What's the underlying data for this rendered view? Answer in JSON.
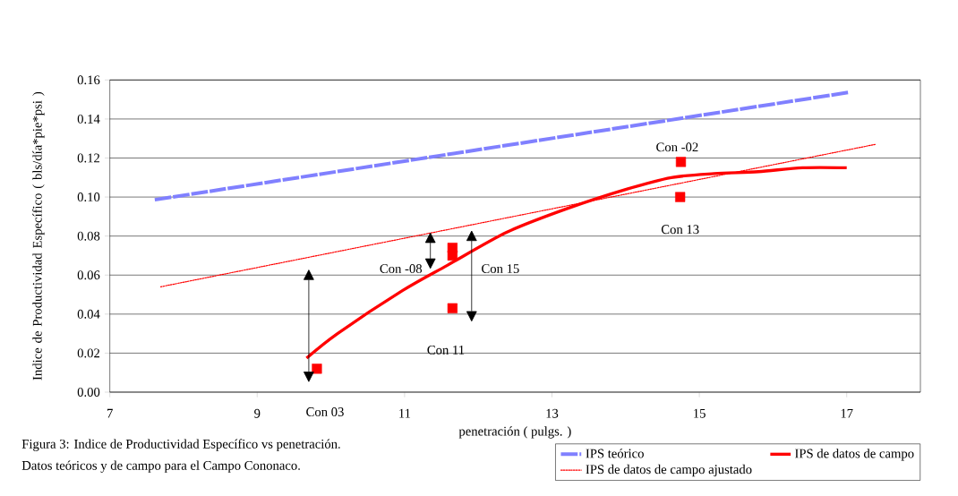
{
  "chart_data": {
    "type": "line",
    "xlabel": "penetración ( pulgs. )",
    "ylabel": "Indice de Productividad Específico ( bls/día*pie*psi )",
    "xlim": [
      7,
      18
    ],
    "xticks": [
      7,
      9,
      11,
      13,
      15,
      17
    ],
    "ylim": [
      0,
      0.16
    ],
    "yticks": [
      {
        "value": 0,
        "label": "0.00"
      },
      {
        "value": 0.02,
        "label": "0.02"
      },
      {
        "value": 0.04,
        "label": "0.04"
      },
      {
        "value": 0.06,
        "label": "0.06"
      },
      {
        "value": 0.08,
        "label": "0.08"
      },
      {
        "value": 0.1,
        "label": "0.10"
      },
      {
        "value": 0.12,
        "label": "0.12"
      },
      {
        "value": 0.14,
        "label": "0.14"
      },
      {
        "value": 0.16,
        "label": "0.16"
      }
    ],
    "grid": "y",
    "legend": "bottom right",
    "series": [
      {
        "name": "IPS teórico",
        "color": "#8080ff",
        "line_style": "dashed",
        "x": [
          7.61,
          17.02
        ],
        "values": [
          0.0986,
          0.1536
        ]
      },
      {
        "name": "IPS de datos de campo",
        "color": "#ff0000",
        "line_style": "solid",
        "x": [
          9.67,
          10.09,
          10.97,
          11.58,
          12.39,
          13.2,
          14.01,
          14.62,
          15.2,
          15.8,
          16.4,
          17.0
        ],
        "values": [
          0.0174,
          0.03,
          0.052,
          0.065,
          0.082,
          0.094,
          0.104,
          0.11,
          0.112,
          0.113,
          0.115,
          0.115
        ]
      },
      {
        "name": "IPS de datos de campo ajustado",
        "color": "#ff0000",
        "line_style": "dotted",
        "x": [
          7.69,
          17.39
        ],
        "values": [
          0.054,
          0.127
        ]
      },
      {
        "type": "scatter",
        "color": "#ff0000",
        "marker": "square",
        "x": [
          9.81,
          11.65,
          11.65,
          11.65,
          14.75,
          14.74
        ],
        "values": [
          0.012,
          0.074,
          0.07,
          0.043,
          0.118,
          0.1
        ]
      }
    ],
    "annotations": [
      "Con -02",
      "Con 13",
      "Con -08",
      "Con 15",
      "Con 11",
      "Con 03",
      "Figura 3: Indice de Productividad Específico vs penetración.",
      "Datos teóricos y de campo para el Campo Cononaco."
    ]
  }
}
